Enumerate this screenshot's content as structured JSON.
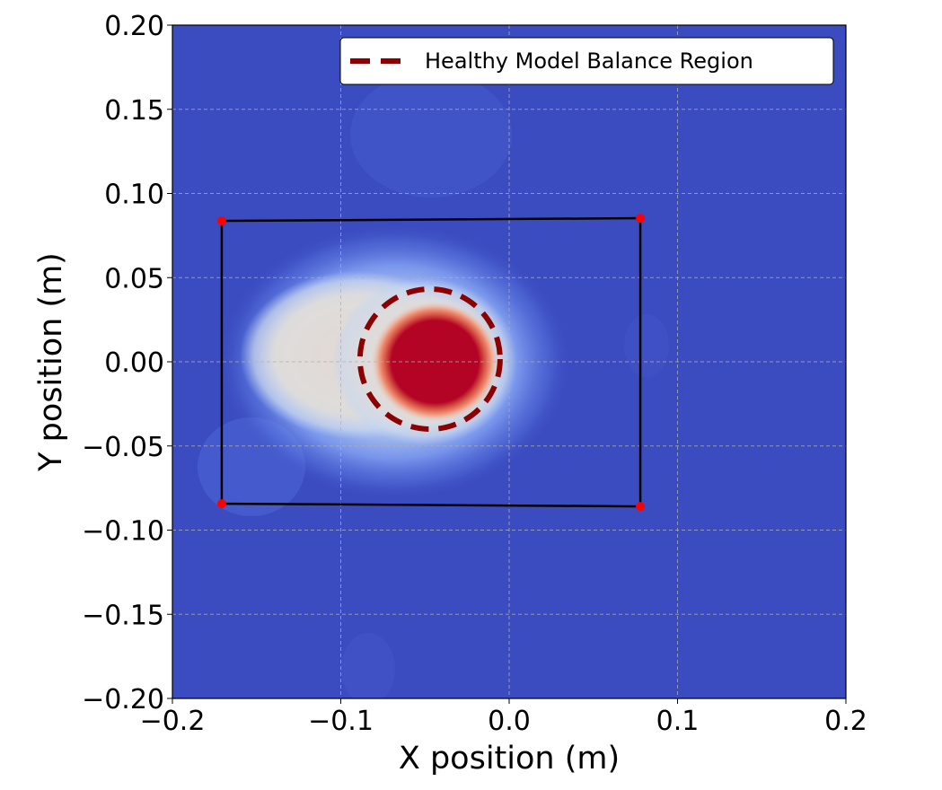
{
  "chart_data": {
    "type": "heatmap",
    "title": "",
    "xlabel": "X position (m)",
    "ylabel": "Y position (m)",
    "xlim": [
      -0.2,
      0.2
    ],
    "ylim": [
      -0.2,
      0.2
    ],
    "x_ticks": [
      {
        "value": -0.2,
        "label": "−0.2"
      },
      {
        "value": -0.1,
        "label": "−0.1"
      },
      {
        "value": 0.0,
        "label": "0.0"
      },
      {
        "value": 0.1,
        "label": "0.1"
      },
      {
        "value": 0.2,
        "label": "0.2"
      }
    ],
    "y_ticks": [
      {
        "value": 0.2,
        "label": "0.20"
      },
      {
        "value": 0.15,
        "label": "0.15"
      },
      {
        "value": 0.1,
        "label": "0.10"
      },
      {
        "value": 0.05,
        "label": "0.05"
      },
      {
        "value": 0.0,
        "label": "0.00"
      },
      {
        "value": -0.05,
        "label": "−0.05"
      },
      {
        "value": -0.1,
        "label": "−0.10"
      },
      {
        "value": -0.15,
        "label": "−0.15"
      },
      {
        "value": -0.2,
        "label": "−0.20"
      }
    ],
    "grid": true,
    "colormap": "coolwarm",
    "colors": {
      "low": "#3b4cc0",
      "mid": "#dddcdc",
      "high": "#b40426",
      "corner_marker": "#ff0000",
      "boundary_line": "#000000",
      "region_circle": "#8b0000"
    },
    "density_blobs": [
      {
        "name": "halo",
        "cx": -0.068,
        "cy": 0.0,
        "rx": 0.105,
        "ry": 0.082,
        "level": 0.45
      },
      {
        "name": "plateau",
        "cx": -0.09,
        "cy": 0.004,
        "rx": 0.07,
        "ry": 0.05,
        "level": 0.55
      },
      {
        "name": "plateau-right",
        "cx": -0.05,
        "cy": 0.0,
        "rx": 0.055,
        "ry": 0.05,
        "level": 0.55
      },
      {
        "name": "core",
        "cx": -0.044,
        "cy": 0.0,
        "rx": 0.038,
        "ry": 0.036,
        "level": 1.0
      }
    ],
    "support_polygon": {
      "label": "",
      "corners": [
        {
          "x": -0.1707,
          "y": 0.0837
        },
        {
          "x": 0.0779,
          "y": 0.0853
        },
        {
          "x": 0.0779,
          "y": -0.0859
        },
        {
          "x": -0.1707,
          "y": -0.0843
        }
      ]
    },
    "balance_region": {
      "label": "Healthy Model Balance Region",
      "cx": -0.047,
      "cy": 0.0016,
      "r": 0.0416,
      "style": "dashed"
    },
    "legend": {
      "position": "top-right",
      "entries": [
        {
          "label": "Healthy Model Balance Region",
          "style": "dashed",
          "color": "#8b0000"
        }
      ]
    }
  }
}
